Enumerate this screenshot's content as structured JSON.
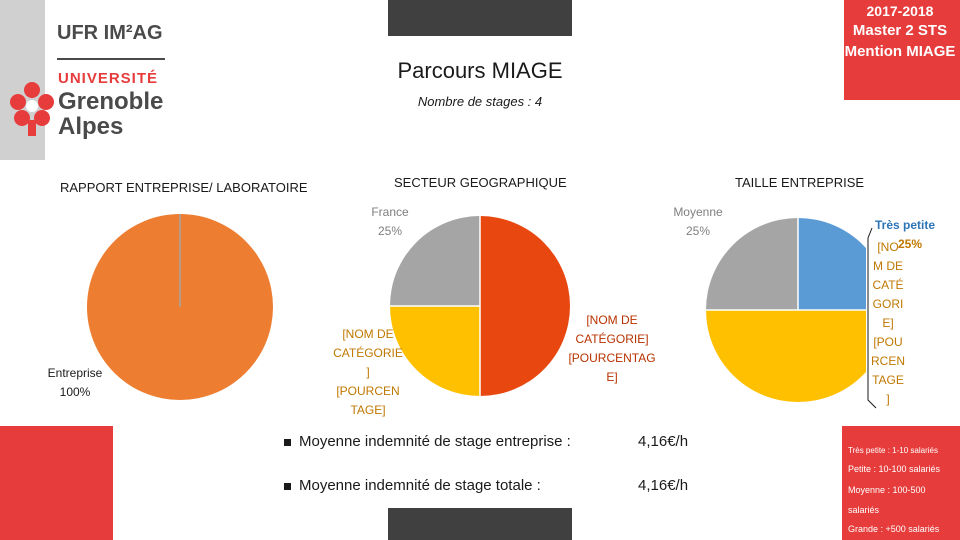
{
  "header": {
    "logo_line1": "UFR IM²AG",
    "logo_line2": "UNIVERSITÉ",
    "logo_line3": "Grenoble",
    "logo_line4": "Alpes",
    "year": "2017-2018",
    "program": "Master 2 STS Mention MIAGE",
    "title": "Parcours MIAGE",
    "subtitle": "Nombre de stages : 4"
  },
  "colors": {
    "red": "#e63c3c",
    "orange": "#ed7d31",
    "grey": "#a5a5a5",
    "yellow": "#ffc000",
    "blue": "#5b9bd5",
    "darkorange": "#e8470f"
  },
  "chart_data": [
    {
      "type": "pie",
      "title": "RAPPORT ENTREPRISE/ LABORATOIRE",
      "slices": [
        {
          "name": "Entreprise",
          "value": 100,
          "label": "Entreprise\n100%"
        }
      ]
    },
    {
      "type": "pie",
      "title": "SECTEUR GEOGRAPHIQUE",
      "slices": [
        {
          "name": "France",
          "value": 25,
          "label": "France\n25%"
        },
        {
          "name": "[NOM DE CATÉGORIE]",
          "value": 25,
          "label": "[NOM DE CATÉGORIE] [POURCENTAGE]"
        },
        {
          "name": "[NOM DE CATÉGORIE]",
          "value": 50,
          "label": "[NOM DE CATÉGORIE] [POURCENTAGE]"
        }
      ]
    },
    {
      "type": "pie",
      "title": "TAILLE ENTREPRISE",
      "slices": [
        {
          "name": "Très petite",
          "value": 25,
          "label": "Très petite 25%"
        },
        {
          "name": "[NOM DE CATÉGORIE]",
          "value": 50,
          "label": "[NOM DE CATÉGORIE] [POURCENTAGE]"
        },
        {
          "name": "Moyenne",
          "value": 25,
          "label": "Moyenne\n25%"
        }
      ]
    }
  ],
  "labels": {
    "pie1_entreprise": [
      "Entreprise",
      "100%"
    ],
    "pie2_france": [
      "France",
      "25%"
    ],
    "pie2_left": [
      "[NOM DE",
      "CATÉGORIE",
      "]",
      "[POURCEN",
      "TAGE]"
    ],
    "pie2_right": [
      "[NOM DE",
      "CATÉGORIE]",
      "[POURCENTAG",
      "E]"
    ],
    "pie3_moyenne": [
      "Moyenne",
      "25%"
    ],
    "pie3_tres_petite": "Très petite",
    "pie3_right_label": [
      "[NO",
      "M DE",
      "CATÉ",
      "GORI",
      "E]",
      "[POU",
      "RCEN",
      "TAGE",
      "]"
    ],
    "pie3_percent": "25%"
  },
  "stats": [
    {
      "label": "Moyenne indemnité de stage entreprise :",
      "value": "4,16€/h"
    },
    {
      "label": "Moyenne indemnité de stage totale :",
      "value": "4,16€/h"
    }
  ],
  "legend": [
    "Très petite : 1-10 salariés",
    "Petite : 10-100 salariés",
    "Moyenne : 100-500",
    "salariés",
    "Grande : +500 salariés"
  ]
}
